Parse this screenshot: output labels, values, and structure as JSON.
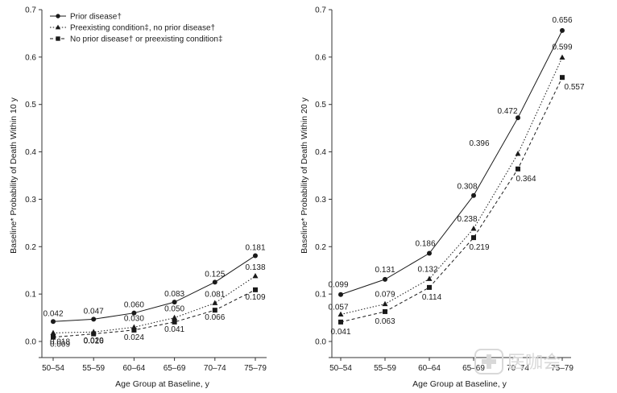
{
  "chart_data": [
    {
      "type": "line",
      "categories": [
        "50–54",
        "55–59",
        "60–64",
        "65–69",
        "70–74",
        "75–79"
      ],
      "xlabel": "Age Group at Baseline, y",
      "ylabel": "Baseline* Probability of Death Within 10 y",
      "ylim": [
        0,
        0.7
      ],
      "yticks": [
        "0.0",
        "0.1",
        "0.2",
        "0.3",
        "0.4",
        "0.5",
        "0.6",
        "0.7"
      ],
      "legend": "top-left",
      "series": [
        {
          "name": "Prior disease†",
          "marker": "circle",
          "dash": "solid",
          "values": [
            0.042,
            0.047,
            0.06,
            0.083,
            0.125,
            0.181
          ],
          "labels": [
            "0.042",
            "0.047",
            "0.060",
            "0.083",
            "0.125",
            "0.181"
          ]
        },
        {
          "name": "Preexisting condition‡, no prior disease†",
          "marker": "triangle",
          "dash": "dotted",
          "values": [
            0.018,
            0.02,
            0.03,
            0.05,
            0.081,
            0.138
          ],
          "labels": [
            "0.018",
            "0.020",
            "0.030",
            "0.050",
            "0.081",
            "0.138"
          ]
        },
        {
          "name": "No prior disease† or preexisting condition‡",
          "marker": "square",
          "dash": "dashed",
          "values": [
            0.009,
            0.016,
            0.024,
            0.041,
            0.066,
            0.109
          ],
          "labels": [
            "0.009",
            "0.016",
            "0.024",
            "0.041",
            "0.066",
            "0.109"
          ]
        }
      ]
    },
    {
      "type": "line",
      "categories": [
        "50–54",
        "55–59",
        "60–64",
        "65–69",
        "70–74",
        "75–79"
      ],
      "xlabel": "Age Group at Baseline, y",
      "ylabel": "Baseline* Probability of Death Within 20 y",
      "ylim": [
        0,
        0.7
      ],
      "yticks": [
        "0.0",
        "0.1",
        "0.2",
        "0.3",
        "0.4",
        "0.5",
        "0.6",
        "0.7"
      ],
      "series": [
        {
          "name": "Prior disease†",
          "marker": "circle",
          "dash": "solid",
          "values": [
            0.099,
            0.131,
            0.186,
            0.308,
            0.472,
            0.656
          ],
          "labels": [
            "0.099",
            "0.131",
            "0.186",
            "0.308",
            "0.472",
            "0.656"
          ]
        },
        {
          "name": "Preexisting condition‡, no prior disease†",
          "marker": "triangle",
          "dash": "dotted",
          "values": [
            0.057,
            0.079,
            0.132,
            0.238,
            0.396,
            0.599
          ],
          "labels": [
            "0.057",
            "0.079",
            "0.132",
            "0.238",
            "0.396",
            "0.599"
          ]
        },
        {
          "name": "No prior disease† or preexisting condition‡",
          "marker": "square",
          "dash": "dashed",
          "values": [
            0.041,
            0.063,
            0.114,
            0.219,
            0.364,
            0.557
          ],
          "labels": [
            "0.041",
            "0.063",
            "0.114",
            "0.219",
            "0.364",
            "0.557"
          ]
        }
      ]
    }
  ],
  "watermark": {
    "text": "医咖会",
    "icon": "medical-cross-logo-icon"
  },
  "colors": {
    "ink": "#1a1a1a",
    "axis": "#333333",
    "watermark": "#d9d9d9"
  }
}
